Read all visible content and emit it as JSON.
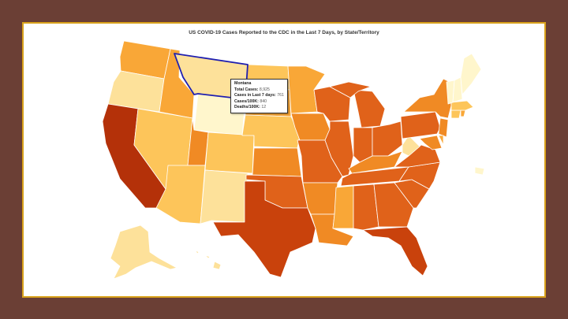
{
  "title": "US COVID-19 Cases Reported to the CDC in the Last 7 Days, by State/Territory",
  "tooltip": {
    "state": "Montana",
    "rows": [
      {
        "label": "Total Cases:",
        "value": "8,925"
      },
      {
        "label": "Cases in Last 7 days:",
        "value": "761"
      },
      {
        "label": "Cases/100K:",
        "value": "840"
      },
      {
        "label": "Deaths/100K:",
        "value": "12"
      }
    ]
  },
  "colors": {
    "very_light": "#fff6cc",
    "light": "#fde19a",
    "pale_orange": "#fdc55a",
    "orange": "#f9a737",
    "mid_orange": "#f08a24",
    "dark_orange": "#e0621a",
    "red_orange": "#c9420c",
    "deep_red": "#b43109",
    "highlight_stroke": "#1f1fb0"
  },
  "states": [
    {
      "id": "WA",
      "color": "orange"
    },
    {
      "id": "OR",
      "color": "light"
    },
    {
      "id": "CA",
      "color": "deep_red"
    },
    {
      "id": "ID",
      "color": "orange"
    },
    {
      "id": "NV",
      "color": "pale_orange"
    },
    {
      "id": "MT",
      "color": "light",
      "highlight": true
    },
    {
      "id": "WY",
      "color": "very_light"
    },
    {
      "id": "UT",
      "color": "mid_orange"
    },
    {
      "id": "AZ",
      "color": "pale_orange"
    },
    {
      "id": "CO",
      "color": "pale_orange"
    },
    {
      "id": "NM",
      "color": "light"
    },
    {
      "id": "ND",
      "color": "pale_orange"
    },
    {
      "id": "SD",
      "color": "orange"
    },
    {
      "id": "NE",
      "color": "pale_orange"
    },
    {
      "id": "KS",
      "color": "mid_orange"
    },
    {
      "id": "OK",
      "color": "dark_orange"
    },
    {
      "id": "TX",
      "color": "red_orange"
    },
    {
      "id": "MN",
      "color": "orange"
    },
    {
      "id": "IA",
      "color": "mid_orange"
    },
    {
      "id": "MO",
      "color": "dark_orange"
    },
    {
      "id": "AR",
      "color": "mid_orange"
    },
    {
      "id": "LA",
      "color": "mid_orange"
    },
    {
      "id": "WI",
      "color": "dark_orange"
    },
    {
      "id": "IL",
      "color": "dark_orange"
    },
    {
      "id": "MI",
      "color": "dark_orange"
    },
    {
      "id": "IN",
      "color": "dark_orange"
    },
    {
      "id": "OH",
      "color": "dark_orange"
    },
    {
      "id": "KY",
      "color": "mid_orange"
    },
    {
      "id": "TN",
      "color": "dark_orange"
    },
    {
      "id": "MS",
      "color": "orange"
    },
    {
      "id": "AL",
      "color": "dark_orange"
    },
    {
      "id": "GA",
      "color": "dark_orange"
    },
    {
      "id": "FL",
      "color": "red_orange"
    },
    {
      "id": "SC",
      "color": "dark_orange"
    },
    {
      "id": "NC",
      "color": "dark_orange"
    },
    {
      "id": "VA",
      "color": "dark_orange"
    },
    {
      "id": "WV",
      "color": "light"
    },
    {
      "id": "PA",
      "color": "dark_orange"
    },
    {
      "id": "NY",
      "color": "mid_orange"
    },
    {
      "id": "NJ",
      "color": "mid_orange"
    },
    {
      "id": "MD",
      "color": "mid_orange"
    },
    {
      "id": "DE",
      "color": "orange"
    },
    {
      "id": "CT",
      "color": "pale_orange"
    },
    {
      "id": "RI",
      "color": "orange"
    },
    {
      "id": "MA",
      "color": "pale_orange"
    },
    {
      "id": "VT",
      "color": "very_light"
    },
    {
      "id": "NH",
      "color": "very_light"
    },
    {
      "id": "ME",
      "color": "very_light"
    },
    {
      "id": "AK",
      "color": "light"
    },
    {
      "id": "HI",
      "color": "light"
    },
    {
      "id": "PR",
      "color": "very_light"
    }
  ]
}
